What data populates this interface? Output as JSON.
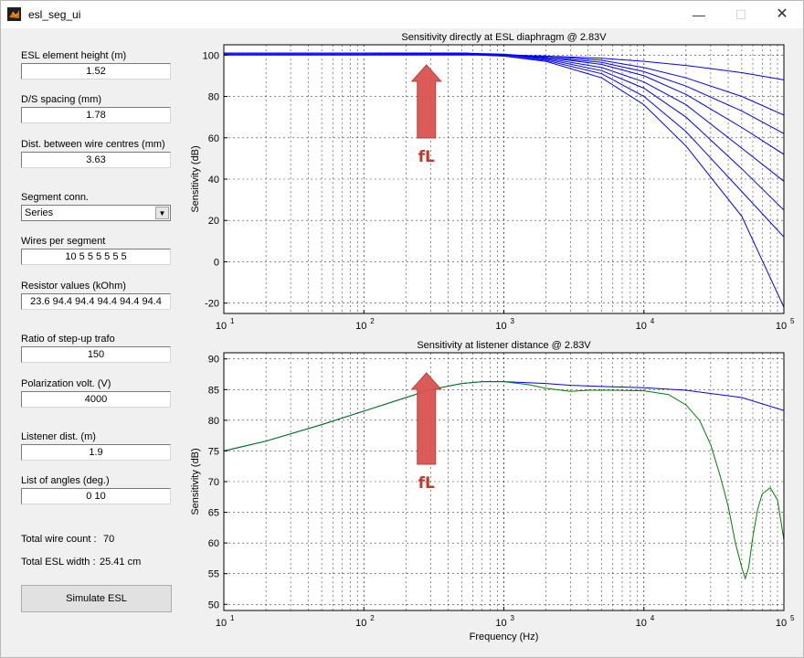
{
  "window": {
    "title": "esl_seg_ui",
    "minimize_glyph": "—",
    "maximize_glyph": "☐",
    "close_glyph": "✕",
    "icon": "matlab-icon"
  },
  "form": {
    "height_label": "ESL element height (m)",
    "height_value": "1.52",
    "spacing_label": "D/S spacing (mm)",
    "spacing_value": "1.78",
    "wire_dist_label": "Dist. between wire centres (mm)",
    "wire_dist_value": "3.63",
    "segment_label": "Segment conn.",
    "segment_value": "Series",
    "wires_label": "Wires per segment",
    "wires_value": "10 5 5 5 5 5 5",
    "resistor_label": "Resistor values (kOhm)",
    "resistor_value": "23.6 94.4 94.4 94.4 94.4 94.4",
    "ratio_label": "Ratio of step-up trafo",
    "ratio_value": "150",
    "polarization_label": "Polarization volt. (V)",
    "polarization_value": "4000",
    "listener_label": "Listener dist. (m)",
    "listener_value": "1.9",
    "angles_label": "List of angles (deg.)",
    "angles_value": "0 10",
    "total_wire_label": "Total wire count :",
    "total_wire_value": "70",
    "total_width_label": "Total ESL width :",
    "total_width_value": "25.41 cm",
    "simulate_label": "Simulate ESL"
  },
  "chart_data": [
    {
      "type": "line",
      "title": "Sensitivity directly at ESL diaphragm @ 2.83V",
      "xlabel": "",
      "ylabel": "Sensitivity (dB)",
      "xscale": "log",
      "xlim": [
        10,
        100000
      ],
      "ylim": [
        -25,
        105
      ],
      "yticks": [
        -20,
        0,
        20,
        40,
        60,
        80,
        100
      ],
      "ytick_labels": [
        "-20",
        "0",
        "20",
        "40",
        "60",
        "80",
        "100"
      ],
      "xtick_labels": [
        [
          "10",
          "1"
        ],
        [
          "10",
          "2"
        ],
        [
          "10",
          "3"
        ],
        [
          "10",
          "4"
        ],
        [
          "10",
          "5"
        ]
      ],
      "grid": true,
      "annotation": "fL",
      "annotation_x": 280,
      "color": "#0000ff",
      "series": [
        {
          "x": [
            10,
            100,
            500,
            1000,
            2000,
            5000,
            10000,
            20000,
            50000,
            100000
          ],
          "values": [
            100,
            100,
            100,
            100,
            99.5,
            98.5,
            97,
            95,
            91.5,
            88
          ]
        },
        {
          "x": [
            10,
            100,
            500,
            1000,
            2000,
            5000,
            10000,
            20000,
            50000,
            100000
          ],
          "values": [
            100.5,
            100.5,
            100.5,
            100,
            99.5,
            97.5,
            94,
            89,
            80,
            71
          ]
        },
        {
          "x": [
            10,
            100,
            500,
            1000,
            2000,
            5000,
            10000,
            20000,
            50000,
            100000
          ],
          "values": [
            100.5,
            100.5,
            100.5,
            100,
            99,
            96.5,
            92,
            85,
            73,
            62
          ]
        },
        {
          "x": [
            10,
            100,
            500,
            1000,
            2000,
            5000,
            10000,
            20000,
            50000,
            100000
          ],
          "values": [
            101,
            101,
            101,
            100.5,
            99,
            95.5,
            90,
            81,
            65,
            52
          ]
        },
        {
          "x": [
            10,
            100,
            500,
            1000,
            2000,
            5000,
            10000,
            20000,
            50000,
            100000
          ],
          "values": [
            101,
            101,
            101,
            100,
            98.5,
            94,
            87,
            76,
            55,
            39
          ]
        },
        {
          "x": [
            10,
            100,
            500,
            1000,
            2000,
            5000,
            10000,
            20000,
            50000,
            100000
          ],
          "values": [
            101,
            101,
            101,
            100,
            98,
            92.5,
            84,
            70,
            45,
            25
          ]
        },
        {
          "x": [
            10,
            100,
            500,
            1000,
            2000,
            5000,
            10000,
            20000,
            50000,
            100000
          ],
          "values": [
            101,
            101,
            100.5,
            99.5,
            97.5,
            91,
            80,
            63,
            34,
            12
          ]
        },
        {
          "x": [
            10,
            100,
            500,
            1000,
            2000,
            5000,
            10000,
            20000,
            50000,
            100000
          ],
          "values": [
            101,
            101,
            100.5,
            99.5,
            97,
            89,
            76,
            56,
            22,
            -22
          ]
        }
      ]
    },
    {
      "type": "line",
      "title": "Sensitivity at listener distance @ 2.83V",
      "xlabel": "Frequency (Hz)",
      "ylabel": "Sensitivity (dB)",
      "xscale": "log",
      "xlim": [
        10,
        100000
      ],
      "ylim": [
        49,
        91
      ],
      "yticks": [
        50,
        55,
        60,
        65,
        70,
        75,
        80,
        85,
        90
      ],
      "ytick_labels": [
        "50",
        "55",
        "60",
        "65",
        "70",
        "75",
        "80",
        "85",
        "90"
      ],
      "xtick_labels": [
        [
          "10",
          "1"
        ],
        [
          "10",
          "2"
        ],
        [
          "10",
          "3"
        ],
        [
          "10",
          "4"
        ],
        [
          "10",
          "5"
        ]
      ],
      "grid": true,
      "annotation": "fL",
      "annotation_x": 280,
      "series": [
        {
          "color": "#0000ff",
          "x": [
            10,
            20,
            50,
            100,
            200,
            300,
            500,
            700,
            1000,
            2000,
            3000,
            5000,
            10000,
            20000,
            50000,
            100000
          ],
          "values": [
            75,
            76.6,
            79.3,
            81.5,
            83.7,
            85,
            86,
            86.3,
            86.3,
            86,
            85.7,
            85.5,
            85.3,
            84.9,
            83.7,
            81.6
          ]
        },
        {
          "color": "#008000",
          "x": [
            10,
            20,
            50,
            100,
            200,
            300,
            500,
            700,
            1000,
            1500,
            2000,
            3000,
            4000,
            6000,
            10000,
            15000,
            20000,
            25000,
            30000,
            35000,
            40000,
            45000,
            50000,
            53000,
            56000,
            60000,
            65000,
            70000,
            80000,
            90000,
            100000
          ],
          "values": [
            75,
            76.6,
            79.3,
            81.5,
            83.7,
            85,
            86,
            86.3,
            86.3,
            85.8,
            85.2,
            84.7,
            84.9,
            84.9,
            84.8,
            84.2,
            82.5,
            80,
            76,
            71,
            66,
            60,
            56,
            54.2,
            56,
            61,
            65.5,
            68,
            69,
            67,
            60.5
          ]
        }
      ]
    }
  ]
}
